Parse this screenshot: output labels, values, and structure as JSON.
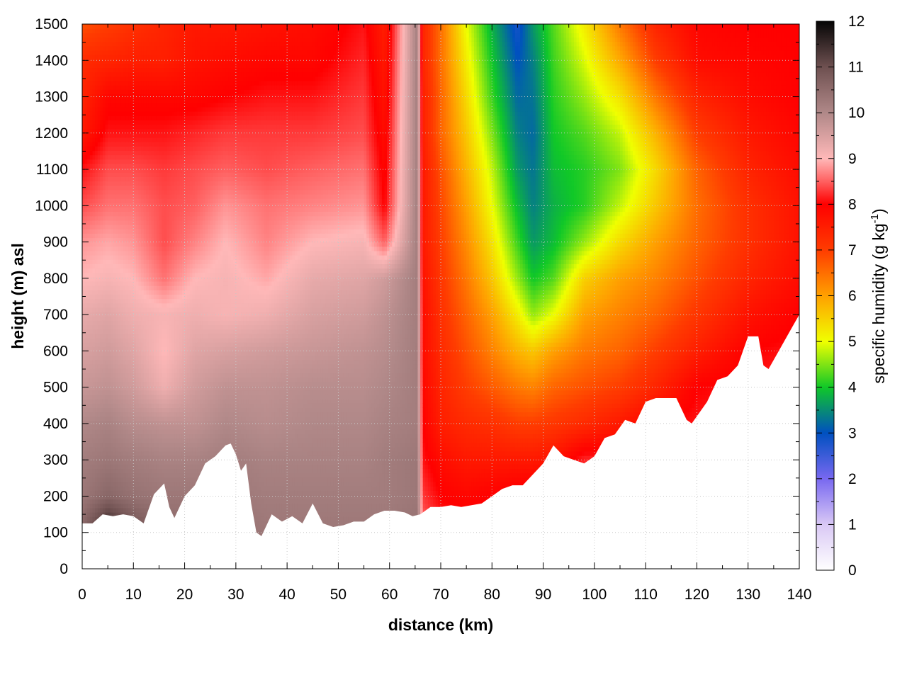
{
  "chart_data": {
    "type": "heatmap",
    "title": "",
    "xlabel": "distance (km)",
    "ylabel": "height (m) asl",
    "xlim": [
      0,
      140
    ],
    "ylim": [
      0,
      1500
    ],
    "x_ticks": [
      "0",
      "10",
      "20",
      "30",
      "40",
      "50",
      "60",
      "70",
      "80",
      "90",
      "100",
      "110",
      "120",
      "130",
      "140"
    ],
    "y_ticks": [
      "0",
      "100",
      "200",
      "300",
      "400",
      "500",
      "600",
      "700",
      "800",
      "900",
      "1000",
      "1100",
      "1200",
      "1300",
      "1400",
      "1500"
    ],
    "grid": true,
    "colorbar": {
      "label": "specific humidity (g kg",
      "label_sup": "-1",
      "label_end": ")",
      "range": [
        0,
        12
      ],
      "ticks": [
        "0",
        "1",
        "2",
        "3",
        "4",
        "5",
        "6",
        "7",
        "8",
        "9",
        "10",
        "11",
        "12"
      ],
      "stops": [
        {
          "value": 0,
          "color": "#ffffff"
        },
        {
          "value": 1,
          "color": "#d9c8f5"
        },
        {
          "value": 2,
          "color": "#7868f0"
        },
        {
          "value": 3,
          "color": "#0050c0"
        },
        {
          "value": 4,
          "color": "#10c828"
        },
        {
          "value": 5,
          "color": "#f0ff00"
        },
        {
          "value": 6,
          "color": "#ffa000"
        },
        {
          "value": 7,
          "color": "#ff3c00"
        },
        {
          "value": 8,
          "color": "#ff0000"
        },
        {
          "value": 8.5,
          "color": "#ff6060"
        },
        {
          "value": 9,
          "color": "#ffb8b8"
        },
        {
          "value": 10,
          "color": "#b08888"
        },
        {
          "value": 11,
          "color": "#6e5050"
        },
        {
          "value": 12,
          "color": "#050505"
        }
      ]
    },
    "terrain_profile": {
      "x": [
        0,
        2,
        4,
        6,
        8,
        10,
        12,
        14,
        16,
        17,
        18,
        20,
        22,
        24,
        26,
        28,
        29,
        30,
        31,
        32,
        33,
        34,
        35,
        37,
        39,
        41,
        43,
        45,
        47,
        49,
        51,
        53,
        55,
        57,
        59,
        61,
        63,
        64.5,
        66,
        68,
        70,
        72,
        74,
        76,
        78,
        80,
        82,
        84,
        86,
        88,
        90,
        92,
        94,
        96,
        98,
        100,
        102,
        104,
        106,
        108,
        110,
        112,
        114,
        116,
        118,
        119,
        120,
        122,
        124,
        126,
        128,
        130,
        132,
        133,
        134,
        136,
        138,
        140
      ],
      "height_m": [
        125,
        125,
        150,
        145,
        150,
        145,
        125,
        205,
        235,
        170,
        140,
        200,
        230,
        290,
        310,
        340,
        345,
        315,
        270,
        290,
        180,
        100,
        90,
        150,
        130,
        145,
        125,
        180,
        125,
        115,
        120,
        130,
        130,
        150,
        160,
        160,
        155,
        145,
        150,
        170,
        170,
        175,
        170,
        175,
        180,
        200,
        220,
        230,
        230,
        260,
        290,
        340,
        310,
        300,
        290,
        310,
        360,
        370,
        410,
        400,
        460,
        470,
        470,
        470,
        410,
        400,
        420,
        460,
        520,
        530,
        560,
        640,
        640,
        560,
        550,
        600,
        650,
        700
      ]
    },
    "humidity_columns": [
      {
        "x": 0,
        "q": [
          11.6,
          10.6,
          10.3,
          10.2,
          10.0,
          9.7,
          9.5,
          9.3,
          9.0,
          8.8,
          8.4,
          8.1,
          7.6,
          7.4,
          7.3,
          6.8
        ]
      },
      {
        "x": 5,
        "q": [
          12.0,
          11.8,
          10.6,
          10.3,
          10.1,
          9.8,
          9.6,
          9.4,
          9.1,
          8.9,
          8.6,
          8.4,
          8.1,
          7.9,
          7.4,
          7.0
        ]
      },
      {
        "x": 10,
        "q": [
          11.5,
          11.0,
          10.4,
          10.2,
          9.9,
          9.6,
          9.4,
          9.2,
          9.0,
          8.8,
          8.6,
          8.4,
          8.1,
          7.9,
          7.5,
          7.2
        ]
      },
      {
        "x": 16,
        "q": [
          10.8,
          10.6,
          10.3,
          10.1,
          9.8,
          9.2,
          9.0,
          9.1,
          8.6,
          8.4,
          8.4,
          8.3,
          8.1,
          7.9,
          7.5,
          7.4
        ]
      },
      {
        "x": 22,
        "q": [
          10.6,
          10.5,
          10.3,
          10.1,
          9.8,
          9.6,
          9.4,
          9.2,
          9.0,
          8.7,
          8.5,
          8.4,
          8.2,
          7.9,
          7.7,
          7.6
        ]
      },
      {
        "x": 28,
        "q": [
          10.5,
          10.4,
          10.3,
          10.2,
          10.0,
          9.8,
          9.5,
          9.1,
          9.1,
          9.0,
          8.8,
          8.5,
          8.3,
          8.0,
          7.8,
          7.6
        ]
      },
      {
        "x": 36,
        "q": [
          10.4,
          10.3,
          10.2,
          10.1,
          9.9,
          9.8,
          9.6,
          9.2,
          8.9,
          8.7,
          8.6,
          8.4,
          8.3,
          8.1,
          7.9,
          7.7
        ]
      },
      {
        "x": 45,
        "q": [
          10.4,
          10.3,
          10.2,
          10.1,
          10.0,
          9.9,
          9.7,
          9.5,
          9.3,
          9.0,
          8.7,
          8.5,
          8.3,
          8.1,
          7.9,
          7.8
        ]
      },
      {
        "x": 55,
        "q": [
          10.4,
          10.3,
          10.2,
          10.1,
          10.0,
          9.9,
          9.8,
          9.6,
          9.4,
          9.1,
          8.8,
          8.6,
          8.4,
          8.3,
          8.2,
          8.1
        ]
      },
      {
        "x": 59,
        "q": [
          10.4,
          10.3,
          10.2,
          10.2,
          10.1,
          10.0,
          9.9,
          9.8,
          9.6,
          8.5,
          8.0,
          7.9,
          7.8,
          7.7,
          7.6,
          7.5
        ]
      },
      {
        "x": 65.5,
        "q": [
          10.4,
          10.4,
          10.3,
          10.3,
          10.2,
          10.2,
          10.2,
          10.2,
          10.2,
          10.2,
          10.2,
          10.2,
          10.2,
          10.2,
          10.2,
          10.2
        ]
      },
      {
        "x": 66.5,
        "q": [
          9.0,
          8.6,
          8.3,
          8.1,
          8.0,
          7.9,
          7.8,
          7.8,
          7.7,
          7.6,
          7.6,
          7.6,
          7.5,
          7.5,
          7.4,
          7.4
        ]
      },
      {
        "x": 70,
        "q": [
          8.0,
          8.2,
          8.0,
          7.8,
          7.5,
          7.4,
          7.3,
          7.2,
          7.1,
          7.0,
          6.9,
          6.8,
          6.6,
          6.6,
          6.5,
          6.5
        ]
      },
      {
        "x": 75,
        "q": [
          8.0,
          8.1,
          7.9,
          7.6,
          7.3,
          7.0,
          6.8,
          6.6,
          6.4,
          6.2,
          6.0,
          5.8,
          5.6,
          5.4,
          5.2,
          5.0
        ]
      },
      {
        "x": 80,
        "q": [
          8.2,
          8.2,
          8.0,
          7.6,
          7.2,
          6.7,
          6.3,
          6.0,
          5.6,
          5.3,
          5.0,
          4.8,
          4.5,
          4.2,
          4.0,
          3.8
        ]
      },
      {
        "x": 85,
        "q": [
          8.5,
          8.4,
          8.1,
          7.6,
          7.0,
          6.4,
          5.8,
          5.2,
          4.6,
          4.2,
          3.9,
          3.6,
          3.4,
          3.2,
          3.0,
          2.8
        ]
      },
      {
        "x": 88,
        "q": [
          8.6,
          8.5,
          8.2,
          7.6,
          7.0,
          6.3,
          5.6,
          4.6,
          4.0,
          3.6,
          3.4,
          3.3,
          3.2,
          3.3,
          3.4,
          3.6
        ]
      },
      {
        "x": 92,
        "q": [
          8.8,
          8.6,
          8.4,
          7.7,
          7.1,
          6.6,
          6.0,
          5.0,
          4.3,
          3.9,
          3.8,
          3.9,
          4.0,
          4.1,
          4.2,
          4.3
        ]
      },
      {
        "x": 98,
        "q": [
          8.8,
          8.6,
          8.4,
          8.2,
          7.3,
          6.8,
          6.4,
          6.0,
          5.5,
          4.6,
          4.1,
          4.1,
          4.3,
          4.6,
          4.9,
          5.2
        ]
      },
      {
        "x": 105,
        "q": [
          8.8,
          8.6,
          8.4,
          8.2,
          7.6,
          7.0,
          6.6,
          6.3,
          6.0,
          5.4,
          4.8,
          4.5,
          4.8,
          5.3,
          5.9,
          6.4
        ]
      },
      {
        "x": 112,
        "q": [
          8.8,
          8.6,
          8.4,
          8.2,
          8.0,
          7.4,
          7.0,
          6.6,
          6.3,
          6.0,
          5.6,
          5.4,
          5.8,
          6.4,
          7.0,
          7.4
        ]
      },
      {
        "x": 120,
        "q": [
          8.8,
          8.6,
          8.4,
          8.2,
          8.1,
          8.0,
          7.5,
          7.1,
          6.8,
          6.6,
          6.5,
          6.6,
          7.0,
          7.4,
          7.8,
          7.9
        ]
      },
      {
        "x": 130,
        "q": [
          8.8,
          8.6,
          8.4,
          8.3,
          8.2,
          8.1,
          8.0,
          7.7,
          7.4,
          7.2,
          7.2,
          7.4,
          7.6,
          7.8,
          7.9,
          8.0
        ]
      },
      {
        "x": 140,
        "q": [
          8.8,
          8.6,
          8.5,
          8.4,
          8.3,
          8.2,
          8.1,
          8.0,
          7.8,
          7.7,
          7.7,
          7.8,
          7.9,
          8.0,
          8.0,
          8.0
        ]
      }
    ],
    "humidity_levels_m": [
      0,
      100,
      200,
      300,
      400,
      500,
      600,
      700,
      800,
      900,
      1000,
      1100,
      1200,
      1300,
      1400,
      1500
    ]
  }
}
